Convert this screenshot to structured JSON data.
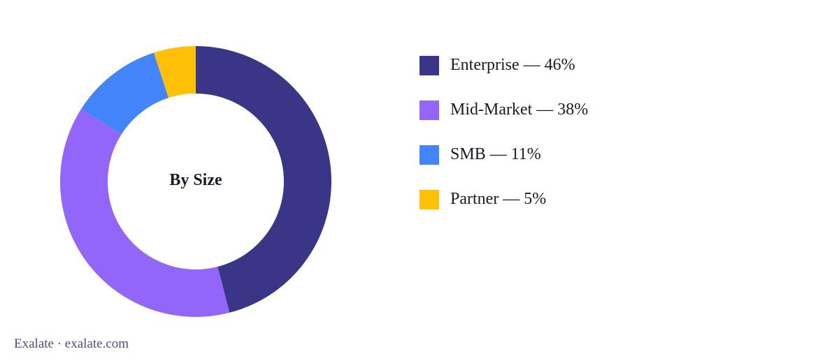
{
  "chart_data": {
    "type": "pie",
    "center_label": "By Size",
    "categories": [
      "Enterprise",
      "Mid-Market",
      "SMB",
      "Partner"
    ],
    "values": [
      46,
      38,
      11,
      5
    ],
    "unit": "%",
    "colors": [
      "#3a3587",
      "#9166f8",
      "#4285fa",
      "#ffc107"
    ],
    "legend_labels": [
      "Enterprise — 46%",
      "Mid-Market — 38%",
      "SMB — 11%",
      "Partner — 5%"
    ],
    "legend_position": "right"
  },
  "footer": {
    "text": "Exalate · exalate.com"
  }
}
